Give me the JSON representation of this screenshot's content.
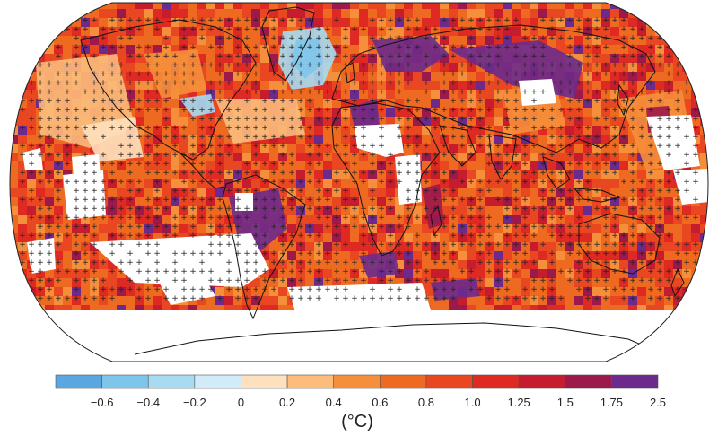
{
  "map": {
    "projection": "robinson",
    "stipple_symbol": "+",
    "missing_color": "#ffffff",
    "coastline_color": "#111111"
  },
  "legend": {
    "unit": "(°C)",
    "colors": [
      "#5aa6de",
      "#7ec5ec",
      "#a6dbf2",
      "#d1ecf8",
      "#fde0be",
      "#fbbc7c",
      "#f68f3b",
      "#ee6a21",
      "#e84722",
      "#de2a23",
      "#c51c2e",
      "#9c1a4b",
      "#6c2a8c"
    ],
    "tick_labels": [
      "−0.6",
      "−0.4",
      "−0.2",
      "0",
      "0.2",
      "0.4",
      "0.6",
      "0.8",
      "1.0",
      "1.25",
      "1.5",
      "1.75",
      "2.5"
    ]
  }
}
